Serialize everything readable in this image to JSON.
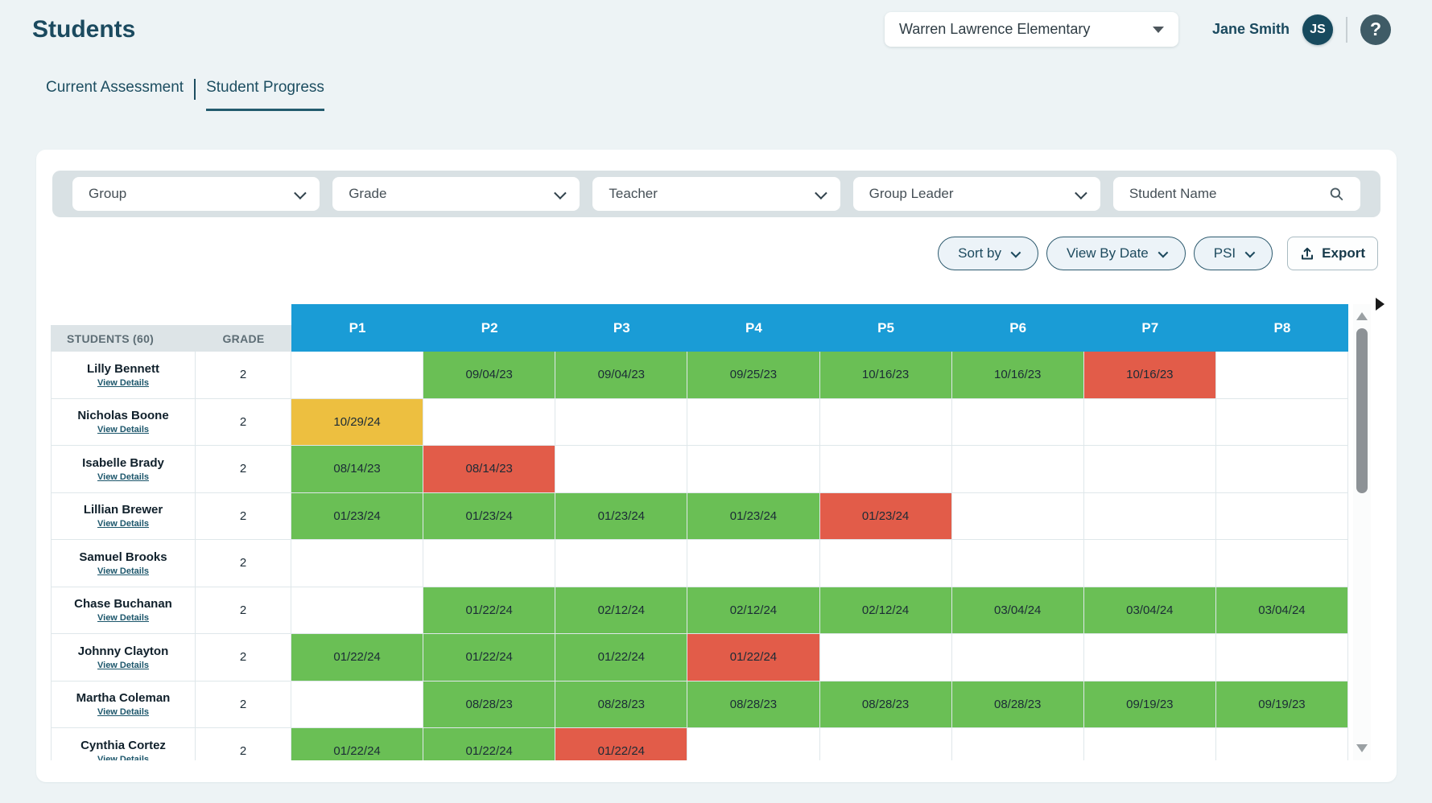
{
  "page": {
    "title": "Students"
  },
  "school_selector": {
    "value": "Warren Lawrence Elementary"
  },
  "user": {
    "name": "Jane Smith",
    "initials": "JS"
  },
  "tabs": {
    "current_assessment": "Current Assessment",
    "student_progress": "Student Progress"
  },
  "filters": {
    "group": {
      "label": "Group"
    },
    "grade": {
      "label": "Grade"
    },
    "teacher": {
      "label": "Teacher"
    },
    "group_leader": {
      "label": "Group Leader"
    },
    "student_name_placeholder": "Student Name"
  },
  "toolbar": {
    "sort_by": "Sort by",
    "view_by_date": "View By Date",
    "psi": "PSI",
    "export": "Export"
  },
  "table": {
    "students_header": "STUDENTS (60)",
    "grade_header": "GRADE",
    "view_details_label": "View Details",
    "periods": [
      "P1",
      "P2",
      "P3",
      "P4",
      "P5",
      "P6",
      "P7",
      "P8"
    ],
    "rows": [
      {
        "name": "Lilly Bennett",
        "grade": "2",
        "cells": [
          null,
          {
            "date": "09/04/23",
            "status": "green"
          },
          {
            "date": "09/04/23",
            "status": "green"
          },
          {
            "date": "09/25/23",
            "status": "green"
          },
          {
            "date": "10/16/23",
            "status": "green"
          },
          {
            "date": "10/16/23",
            "status": "green"
          },
          {
            "date": "10/16/23",
            "status": "red"
          },
          null
        ]
      },
      {
        "name": "Nicholas Boone",
        "grade": "2",
        "cells": [
          {
            "date": "10/29/24",
            "status": "yellow"
          },
          null,
          null,
          null,
          null,
          null,
          null,
          null
        ]
      },
      {
        "name": "Isabelle Brady",
        "grade": "2",
        "cells": [
          {
            "date": "08/14/23",
            "status": "green"
          },
          {
            "date": "08/14/23",
            "status": "red"
          },
          null,
          null,
          null,
          null,
          null,
          null
        ]
      },
      {
        "name": "Lillian Brewer",
        "grade": "2",
        "cells": [
          {
            "date": "01/23/24",
            "status": "green"
          },
          {
            "date": "01/23/24",
            "status": "green"
          },
          {
            "date": "01/23/24",
            "status": "green"
          },
          {
            "date": "01/23/24",
            "status": "green"
          },
          {
            "date": "01/23/24",
            "status": "red"
          },
          null,
          null,
          null
        ]
      },
      {
        "name": "Samuel Brooks",
        "grade": "2",
        "cells": [
          null,
          null,
          null,
          null,
          null,
          null,
          null,
          null
        ]
      },
      {
        "name": "Chase Buchanan",
        "grade": "2",
        "cells": [
          null,
          {
            "date": "01/22/24",
            "status": "green"
          },
          {
            "date": "02/12/24",
            "status": "green"
          },
          {
            "date": "02/12/24",
            "status": "green"
          },
          {
            "date": "02/12/24",
            "status": "green"
          },
          {
            "date": "03/04/24",
            "status": "green"
          },
          {
            "date": "03/04/24",
            "status": "green"
          },
          {
            "date": "03/04/24",
            "status": "green"
          }
        ]
      },
      {
        "name": "Johnny Clayton",
        "grade": "2",
        "cells": [
          {
            "date": "01/22/24",
            "status": "green"
          },
          {
            "date": "01/22/24",
            "status": "green"
          },
          {
            "date": "01/22/24",
            "status": "green"
          },
          {
            "date": "01/22/24",
            "status": "red"
          },
          null,
          null,
          null,
          null
        ]
      },
      {
        "name": "Martha Coleman",
        "grade": "2",
        "cells": [
          null,
          {
            "date": "08/28/23",
            "status": "green"
          },
          {
            "date": "08/28/23",
            "status": "green"
          },
          {
            "date": "08/28/23",
            "status": "green"
          },
          {
            "date": "08/28/23",
            "status": "green"
          },
          {
            "date": "08/28/23",
            "status": "green"
          },
          {
            "date": "09/19/23",
            "status": "green"
          },
          {
            "date": "09/19/23",
            "status": "green"
          }
        ]
      },
      {
        "name": "Cynthia Cortez",
        "grade": "2",
        "cells": [
          {
            "date": "01/22/24",
            "status": "green"
          },
          {
            "date": "01/22/24",
            "status": "green"
          },
          {
            "date": "01/22/24",
            "status": "red"
          },
          null,
          null,
          null,
          null,
          null
        ]
      }
    ]
  },
  "colors": {
    "green": "#6abf55",
    "red": "#e25c49",
    "yellow": "#edbf40",
    "header_blue": "#1a9cd6"
  }
}
